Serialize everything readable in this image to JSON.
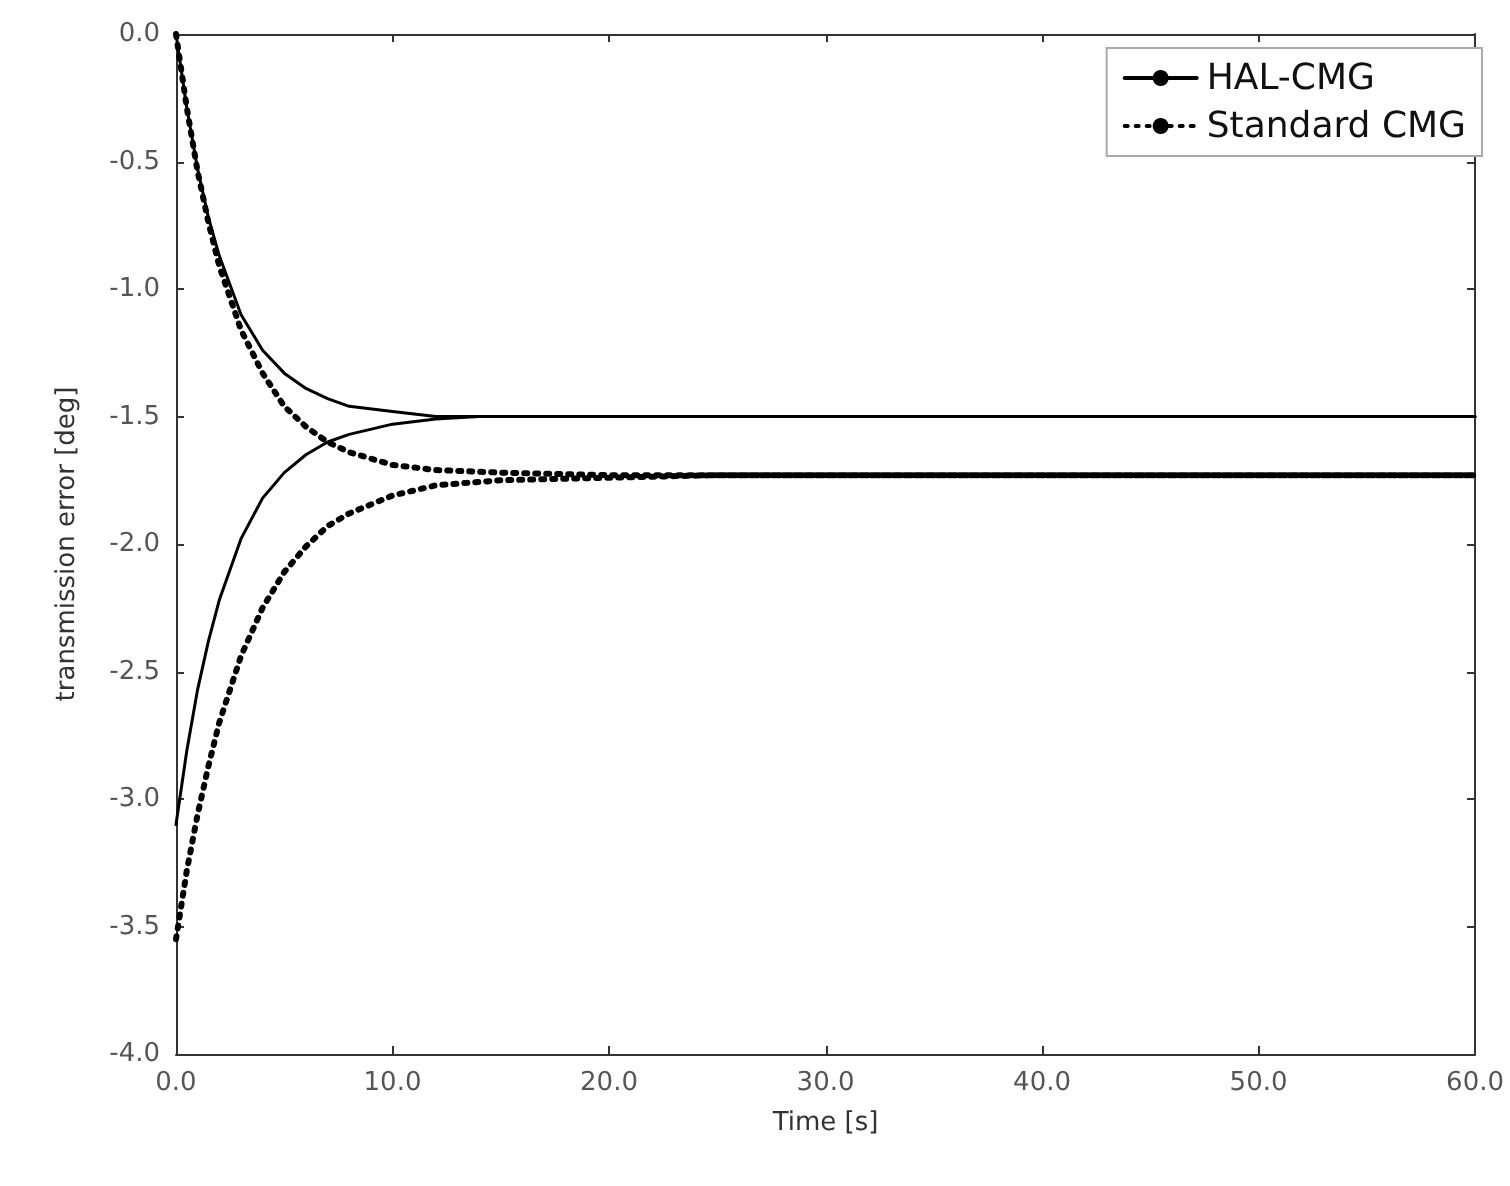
{
  "chart_data": {
    "type": "line",
    "xlabel": "Time [s]",
    "ylabel": "transmission error [deg]",
    "xlim": [
      0,
      60
    ],
    "ylim": [
      -4,
      0
    ],
    "xticks": [
      {
        "value": 0,
        "label": "0.0"
      },
      {
        "value": 10,
        "label": "10.0"
      },
      {
        "value": 20,
        "label": "20.0"
      },
      {
        "value": 30,
        "label": "30.0"
      },
      {
        "value": 40,
        "label": "40.0"
      },
      {
        "value": 50,
        "label": "50.0"
      },
      {
        "value": 60,
        "label": "60.0"
      }
    ],
    "yticks": [
      {
        "value": -4,
        "label": "-4.0"
      },
      {
        "value": -3.5,
        "label": "-3.5"
      },
      {
        "value": -3,
        "label": "-3.0"
      },
      {
        "value": -2.5,
        "label": "-2.5"
      },
      {
        "value": -2,
        "label": "-2.0"
      },
      {
        "value": -1.5,
        "label": "-1.5"
      },
      {
        "value": -1,
        "label": "-1.0"
      },
      {
        "value": -0.5,
        "label": "-0.5"
      },
      {
        "value": 0,
        "label": "0.0"
      }
    ],
    "grid": false,
    "legend": "top right",
    "marker": "none",
    "series": [
      {
        "name": "HAL-CMG",
        "color": "#000000",
        "line_style": "solid",
        "x": [
          0,
          0.5,
          1,
          1.5,
          2,
          3,
          4,
          5,
          6,
          7,
          8,
          10,
          12,
          60
        ],
        "values": [
          0,
          -0.29,
          -0.53,
          -0.72,
          -0.87,
          -1.1,
          -1.24,
          -1.33,
          -1.39,
          -1.43,
          -1.46,
          -1.48,
          -1.5,
          -1.5
        ]
      },
      {
        "color": "#000000",
        "line_style": "solid",
        "x": [
          0,
          0.5,
          1,
          1.5,
          2,
          3,
          4,
          5,
          6,
          7,
          8,
          10,
          12,
          14,
          60
        ],
        "values": [
          -3.1,
          -2.81,
          -2.57,
          -2.38,
          -2.22,
          -1.98,
          -1.82,
          -1.72,
          -1.65,
          -1.6,
          -1.57,
          -1.53,
          -1.51,
          -1.5,
          -1.5
        ]
      },
      {
        "name": "Standard CMG",
        "color": "#000000",
        "line_style": "dotted",
        "x": [
          0,
          0.5,
          1,
          1.5,
          2,
          3,
          4,
          5,
          6,
          7,
          8,
          10,
          12,
          15,
          20,
          60
        ],
        "values": [
          0,
          -0.29,
          -0.54,
          -0.74,
          -0.91,
          -1.16,
          -1.33,
          -1.46,
          -1.54,
          -1.6,
          -1.64,
          -1.69,
          -1.71,
          -1.72,
          -1.73,
          -1.73
        ]
      },
      {
        "color": "#000000",
        "line_style": "dotted",
        "x": [
          0,
          0.5,
          1,
          1.5,
          2,
          3,
          4,
          5,
          6,
          7,
          8,
          10,
          12,
          15,
          20,
          25,
          60
        ],
        "values": [
          -3.55,
          -3.28,
          -3.06,
          -2.87,
          -2.7,
          -2.44,
          -2.25,
          -2.11,
          -2.01,
          -1.93,
          -1.88,
          -1.81,
          -1.77,
          -1.75,
          -1.74,
          -1.73,
          -1.73
        ]
      }
    ]
  }
}
